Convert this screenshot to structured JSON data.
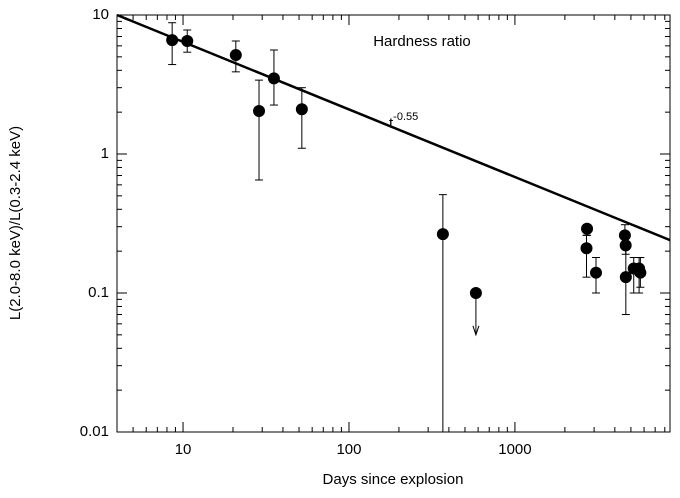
{
  "chart_data": {
    "type": "scatter",
    "xlabel": "Days since explosion",
    "ylabel": "L(2.0-8.0 keV)/L(0.3-2.4 keV)",
    "annotation": "Hardness ratio",
    "log_x": true,
    "log_y": true,
    "xlim": [
      4,
      8600
    ],
    "ylim": [
      0.01,
      10
    ],
    "xticks": [
      10,
      100,
      1000
    ],
    "yticks": [
      0.01,
      0.1,
      1,
      10
    ],
    "xminor": [
      5,
      6,
      7,
      8,
      9,
      20,
      30,
      40,
      50,
      60,
      70,
      80,
      90,
      200,
      300,
      400,
      500,
      600,
      700,
      800,
      900,
      2000,
      3000,
      4000,
      5000,
      6000,
      7000,
      8000
    ],
    "yminor": [
      0.02,
      0.03,
      0.04,
      0.05,
      0.06,
      0.07,
      0.08,
      0.09,
      0.2,
      0.3,
      0.4,
      0.5,
      0.6,
      0.7,
      0.8,
      0.9,
      2,
      3,
      4,
      5,
      6,
      7,
      8,
      9
    ],
    "color": "#000000",
    "x": [
      8.6,
      10.6,
      20.8,
      28.7,
      35.3,
      52,
      368,
      2700,
      2720,
      3080,
      4600,
      4650,
      4660,
      5200,
      5600,
      5700
    ],
    "values": [
      6.6,
      6.5,
      5.15,
      2.04,
      3.5,
      2.1,
      0.265,
      0.21,
      0.29,
      0.14,
      0.26,
      0.22,
      0.13,
      0.15,
      0.15,
      0.14
    ],
    "err_high": [
      8.8,
      7.8,
      6.5,
      3.4,
      5.6,
      3.0,
      0.51,
      0.26,
      0.31,
      0.18,
      0.31,
      0.26,
      0.22,
      0.18,
      0.18,
      0.18
    ],
    "err_low": [
      4.4,
      5.4,
      3.9,
      0.65,
      2.25,
      1.1,
      0.01,
      0.13,
      0.26,
      0.1,
      0.22,
      0.19,
      0.07,
      0.1,
      0.1,
      0.11
    ],
    "upper_limits": {
      "x": [
        582
      ],
      "values": [
        0.1
      ],
      "arrow_to": [
        0.05
      ]
    },
    "fit": {
      "base": "t",
      "exponent": "-0.55",
      "x": [
        4,
        8600
      ],
      "y": [
        10,
        0.24
      ]
    }
  }
}
